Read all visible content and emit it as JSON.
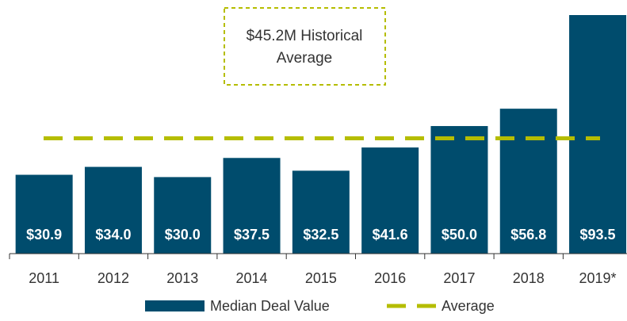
{
  "chart_data": {
    "type": "bar",
    "categories": [
      "2011",
      "2012",
      "2013",
      "2014",
      "2015",
      "2016",
      "2017",
      "2018",
      "2019*"
    ],
    "series": [
      {
        "name": "Median Deal Value",
        "color": "#004c6d",
        "values": [
          30.9,
          34.0,
          30.0,
          37.5,
          32.5,
          41.6,
          50.0,
          56.8,
          93.5
        ],
        "value_labels": [
          "$30.9",
          "$34.0",
          "$30.0",
          "$37.5",
          "$32.5",
          "$41.6",
          "$50.0",
          "$56.8",
          "$93.5"
        ]
      }
    ],
    "average": {
      "name": "Average",
      "value": 45.2,
      "color": "#b5bd00"
    },
    "annotation": [
      "$45.2M Historical",
      "Average"
    ]
  }
}
